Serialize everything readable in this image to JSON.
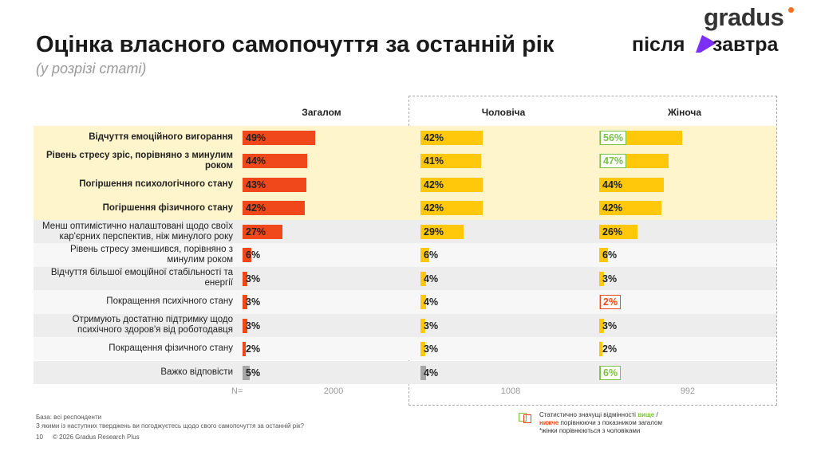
{
  "header": {
    "title": "Оцінка власного самопочуття за останній рік",
    "subtitle": "(у розрізі статі)",
    "logo_top": "gradus",
    "logo_left": "після",
    "logo_right": "завтра"
  },
  "chart_data": {
    "type": "bar",
    "categories": [
      "Відчуття емоційного вигорання",
      "Рівень стресу зріс, порівняно з минулим роком",
      "Погіршення психологічного стану",
      "Погіршення фізичного стану",
      "Менш оптимістично налаштовані щодо своїх кар'єрних перспектив, ніж минулого року",
      "Рівень стресу зменшився, порівняно з минулим роком",
      "Відчуття більшої емоційної стабільності та енергії",
      "Покращення психічного стану",
      "Отримують достатню підтримку щодо психічного здоров'я від роботодавця",
      "Покращення фізичного стану",
      "Важко відповісти"
    ],
    "highlighted": [
      true,
      true,
      true,
      true,
      false,
      false,
      false,
      false,
      false,
      false,
      false
    ],
    "n_label": "N=",
    "series": [
      {
        "name": "Загалом",
        "n": 2000,
        "colors": [
          "#f0481a",
          "#f0481a",
          "#f0481a",
          "#f0481a",
          "#f0481a",
          "#f0481a",
          "#f0481a",
          "#f0481a",
          "#f0481a",
          "#f0481a",
          "#a6a6a6"
        ],
        "values": [
          49,
          44,
          43,
          42,
          27,
          6,
          3,
          3,
          3,
          2,
          5
        ],
        "value_labels": [
          "49%",
          "44%",
          "43%",
          "42%",
          "27%",
          "6%",
          "3%",
          "3%",
          "3%",
          "2%",
          "5%"
        ],
        "box_colors": [
          null,
          null,
          null,
          null,
          null,
          null,
          null,
          null,
          null,
          null,
          null
        ]
      },
      {
        "name": "Чоловіча",
        "n": 1008,
        "colors": [
          "#ffc80a",
          "#ffc80a",
          "#ffc80a",
          "#ffc80a",
          "#ffc80a",
          "#ffc80a",
          "#ffc80a",
          "#ffc80a",
          "#ffc80a",
          "#ffc80a",
          "#a6a6a6"
        ],
        "values": [
          42,
          41,
          42,
          42,
          29,
          6,
          4,
          4,
          3,
          3,
          4
        ],
        "value_labels": [
          "42%",
          "41%",
          "42%",
          "42%",
          "29%",
          "6%",
          "4%",
          "4%",
          "3%",
          "3%",
          "4%"
        ],
        "box_colors": [
          null,
          null,
          null,
          null,
          null,
          null,
          null,
          null,
          null,
          null,
          null
        ]
      },
      {
        "name": "Жіноча",
        "n": 992,
        "colors": [
          "#ffc80a",
          "#ffc80a",
          "#ffc80a",
          "#ffc80a",
          "#ffc80a",
          "#ffc80a",
          "#ffc80a",
          "#ffc80a",
          "#ffc80a",
          "#ffc80a",
          "#a6a6a6"
        ],
        "values": [
          56,
          47,
          44,
          42,
          26,
          6,
          3,
          2,
          3,
          2,
          6
        ],
        "value_labels": [
          "56%",
          "47%",
          "44%",
          "42%",
          "26%",
          "6%",
          "3%",
          "2%",
          "3%",
          "2%",
          "6%"
        ],
        "box_colors": [
          "#7ac143",
          "#7ac143",
          null,
          null,
          null,
          null,
          null,
          "#f0481a",
          null,
          null,
          "#7ac143"
        ]
      }
    ]
  },
  "footer": {
    "base": "База: всі респонденти",
    "question": "З якими із наступних тверджень ви погоджуєтесь щодо свого самопочуття за останній рік?",
    "page": "10",
    "copyright": "© 2026 Gradus Research Plus"
  },
  "legend": {
    "text_before": "Статистично значущі відмінності",
    "higher": "вище",
    "slash": "/",
    "lower": "нижче",
    "text_after": "порівнюючи з показником загалом",
    "note": "*жінки порівнюються з чоловіками",
    "higher_color": "#7ac143",
    "lower_color": "#f0481a"
  }
}
